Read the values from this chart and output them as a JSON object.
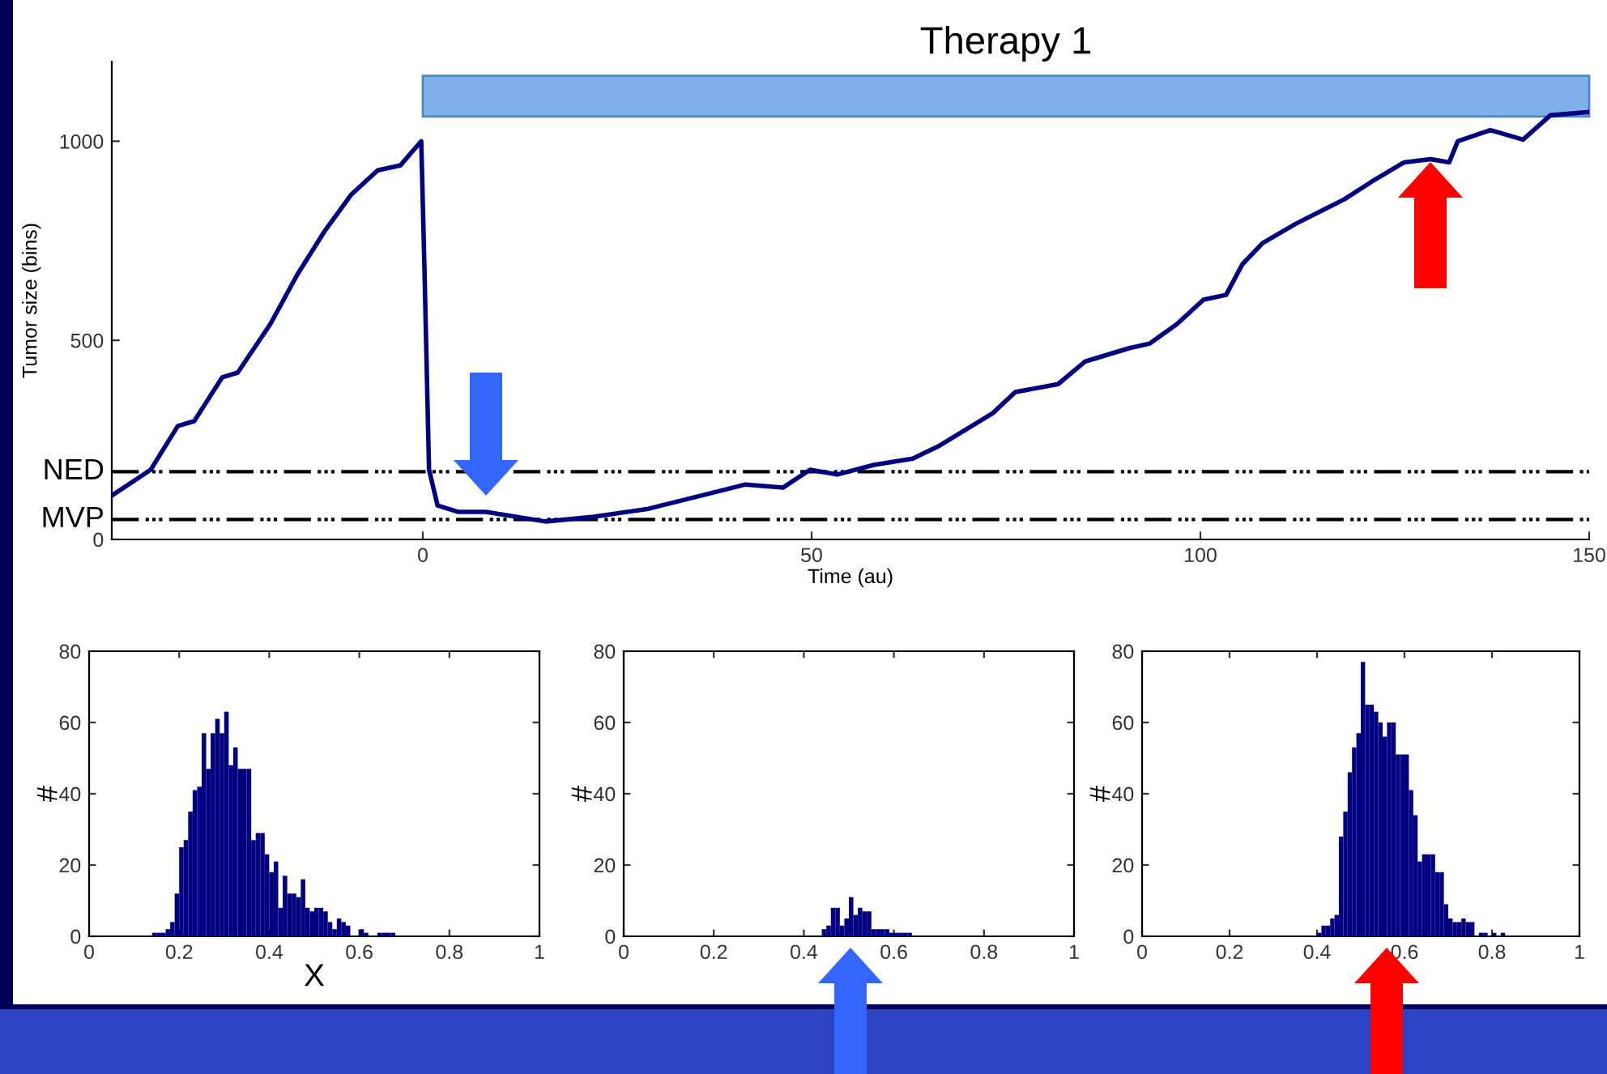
{
  "chart_data": [
    {
      "type": "line",
      "xlabel": "Time (au)",
      "ylabel": "Tumor size (bins)",
      "series": [
        {
          "color": "#000080",
          "x": [
            -40,
            -35,
            -31.5,
            -29.4,
            -25.8,
            -23.8,
            -19.6,
            -16.2,
            -12.7,
            -9.2,
            -5.8,
            -2.9,
            -0.2,
            0.2,
            0.8,
            1.9,
            4.6,
            8.1,
            15.8,
            22,
            29,
            35.8,
            41.5,
            46.3,
            49.8,
            53.3,
            58,
            63,
            66.5,
            73.3,
            76.2,
            81.7,
            85.2,
            90.8,
            93.5,
            97,
            100.4,
            103.3,
            105.4,
            108,
            112.3,
            118.5,
            122,
            126.2,
            129.6,
            132,
            133.1,
            137.3,
            141.5,
            145,
            149.8
          ],
          "values": [
            110,
            175,
            285,
            297,
            407,
            419,
            541,
            663,
            772,
            866,
            927,
            939,
            1000,
            690,
            175,
            85,
            69,
            69,
            45,
            57,
            77,
            110,
            138,
            130,
            175,
            163,
            187,
            203,
            236,
            317,
            370,
            390,
            447,
            480,
            492,
            541,
            602,
            614,
            691,
            744,
            793,
            854,
            898,
            947,
            955,
            947,
            1000,
            1028,
            1004,
            1065,
            1073
          ]
        }
      ],
      "xlim": [
        -40,
        150
      ],
      "ylim": [
        0,
        1200
      ],
      "xticks": [
        0,
        50,
        100,
        150
      ],
      "yticks": [
        0,
        500,
        1000
      ],
      "ref_lines": [
        {
          "axis": "y",
          "value": 170,
          "label": "NED",
          "color": "#000000"
        },
        {
          "axis": "y",
          "value": 50,
          "label": "MVP",
          "color": "#000000"
        }
      ],
      "bands": [
        {
          "axis": "x",
          "from": 0,
          "to": 150,
          "label": "Therapy 1",
          "color": "#7fb2ec"
        }
      ]
    },
    {
      "type": "histogram",
      "xlabel": "X",
      "ylabel": "#",
      "color": "#000080",
      "bins": [
        0.14,
        0.15,
        0.16,
        0.17,
        0.18,
        0.19,
        0.2,
        0.21,
        0.22,
        0.23,
        0.24,
        0.25,
        0.26,
        0.27,
        0.28,
        0.29,
        0.3,
        0.31,
        0.32,
        0.33,
        0.34,
        0.35,
        0.36,
        0.37,
        0.38,
        0.39,
        0.4,
        0.41,
        0.42,
        0.43,
        0.44,
        0.45,
        0.46,
        0.47,
        0.48,
        0.49,
        0.5,
        0.51,
        0.52,
        0.53,
        0.54,
        0.55,
        0.56,
        0.57,
        0.58,
        0.59,
        0.6,
        0.61,
        0.62,
        0.63,
        0.64,
        0.65,
        0.66,
        0.67,
        0.68
      ],
      "values": [
        1,
        1,
        1,
        2,
        4,
        12,
        25,
        27,
        35,
        41,
        42,
        57,
        47,
        57,
        61,
        57,
        63,
        48,
        53,
        47,
        47,
        47,
        27,
        29,
        29,
        23,
        18,
        21,
        8,
        17,
        12,
        12,
        11,
        16,
        8,
        7,
        8,
        8,
        7,
        4,
        2,
        5,
        4,
        3,
        0,
        0,
        2,
        1,
        0,
        0,
        1,
        1,
        1,
        1
      ],
      "xlim": [
        0,
        1
      ],
      "ylim": [
        0,
        80
      ],
      "xticks": [
        0,
        0.2,
        0.4,
        0.6,
        0.8,
        1
      ],
      "yticks": [
        0,
        20,
        40,
        60,
        80
      ]
    },
    {
      "type": "histogram",
      "ylabel": "#",
      "color": "#000080",
      "bins": [
        0.44,
        0.45,
        0.46,
        0.47,
        0.48,
        0.49,
        0.5,
        0.51,
        0.52,
        0.53,
        0.54,
        0.55,
        0.56,
        0.57,
        0.58,
        0.59,
        0.6,
        0.61,
        0.62,
        0.63,
        0.64
      ],
      "values": [
        2,
        3,
        8,
        8,
        3,
        5,
        11,
        6,
        8,
        7,
        7,
        2,
        2,
        2,
        2,
        1,
        1,
        1,
        1,
        1
      ],
      "xlim": [
        0,
        1
      ],
      "ylim": [
        0,
        80
      ],
      "xticks": [
        0,
        0.2,
        0.4,
        0.6,
        0.8,
        1
      ],
      "yticks": [
        0,
        20,
        40,
        60,
        80
      ]
    },
    {
      "type": "histogram",
      "ylabel": "#",
      "color": "#000080",
      "bins": [
        0.4,
        0.41,
        0.42,
        0.43,
        0.44,
        0.45,
        0.46,
        0.47,
        0.48,
        0.49,
        0.5,
        0.51,
        0.52,
        0.53,
        0.54,
        0.55,
        0.56,
        0.57,
        0.58,
        0.59,
        0.6,
        0.61,
        0.62,
        0.63,
        0.64,
        0.65,
        0.66,
        0.67,
        0.68,
        0.69,
        0.7,
        0.71,
        0.72,
        0.73,
        0.74,
        0.75,
        0.76,
        0.77,
        0.78,
        0.79,
        0.8,
        0.81,
        0.82,
        0.83
      ],
      "values": [
        1,
        3,
        3,
        5,
        6,
        28,
        35,
        46,
        53,
        57,
        77,
        65,
        65,
        63,
        60,
        56,
        60,
        60,
        51,
        51,
        51,
        41,
        34,
        21,
        23,
        23,
        23,
        18,
        18,
        9,
        5,
        4,
        4,
        5,
        4,
        4,
        0,
        1,
        1,
        0,
        1,
        0,
        1
      ],
      "xlim": [
        0,
        1
      ],
      "ylim": [
        0,
        80
      ],
      "xticks": [
        0,
        0.2,
        0.4,
        0.6,
        0.8,
        1
      ],
      "yticks": [
        0,
        20,
        40,
        60,
        80
      ]
    }
  ]
}
